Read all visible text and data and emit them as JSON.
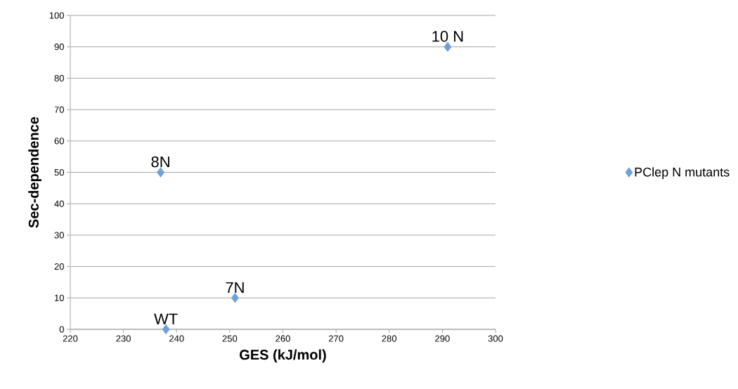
{
  "chart_data": {
    "type": "scatter",
    "xlabel": "GES (kJ/mol)",
    "ylabel": "Sec-dependence",
    "series": [
      {
        "name": "PClep N mutants",
        "color": "#6fa0dc",
        "x": [
          238,
          237,
          251,
          291
        ],
        "values": [
          0,
          50,
          10,
          90
        ]
      }
    ],
    "xlim": [
      220,
      300
    ],
    "xticks": [
      220,
      230,
      240,
      250,
      260,
      270,
      280,
      290,
      300
    ],
    "ylim": [
      0,
      100
    ],
    "yticks": [
      0,
      10,
      20,
      30,
      40,
      50,
      60,
      70,
      80,
      90,
      100
    ],
    "grid": "y",
    "legend": "right",
    "marker": "diamond",
    "annotations": [
      {
        "text": "WT",
        "x": 238,
        "y": 0
      },
      {
        "text": "8N",
        "x": 237,
        "y": 50
      },
      {
        "text": "7N",
        "x": 251,
        "y": 10
      },
      {
        "text": "10 N",
        "x": 291,
        "y": 90
      }
    ]
  }
}
